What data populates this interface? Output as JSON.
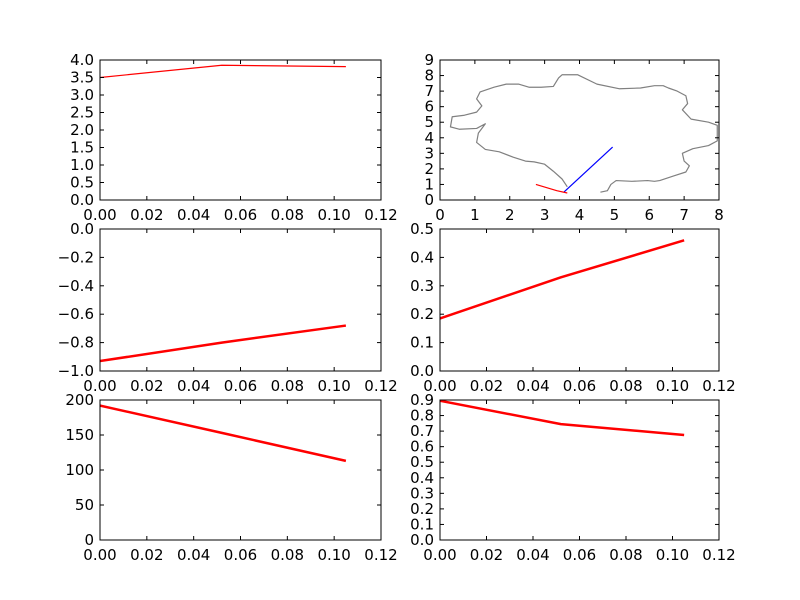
{
  "chart_data": [
    {
      "type": "line",
      "xlim": [
        0,
        0.12
      ],
      "ylim": [
        0,
        4
      ],
      "xticks": [
        0,
        0.02,
        0.04,
        0.06,
        0.08,
        0.1,
        0.12
      ],
      "xtick_labels": [
        "0.00",
        "0.02",
        "0.04",
        "0.06",
        "0.08",
        "0.10",
        "0.12"
      ],
      "yticks": [
        0,
        0.5,
        1,
        1.5,
        2,
        2.5,
        3,
        3.5,
        4
      ],
      "ytick_labels": [
        "0.0",
        "0.5",
        "1.0",
        "1.5",
        "2.0",
        "2.5",
        "3.0",
        "3.5",
        "4.0"
      ],
      "grid": false,
      "series": [
        {
          "color": "#ff0000",
          "x": [
            0,
            0.052,
            0.105
          ],
          "y": [
            3.5,
            3.85,
            3.81
          ]
        }
      ]
    },
    {
      "type": "line",
      "xlim": [
        0,
        8
      ],
      "ylim": [
        0,
        9
      ],
      "xticks": [
        0,
        1,
        2,
        3,
        4,
        5,
        6,
        7,
        8
      ],
      "xtick_labels": [
        "0",
        "1",
        "2",
        "3",
        "4",
        "5",
        "6",
        "7",
        "8"
      ],
      "yticks": [
        0,
        1,
        2,
        3,
        4,
        5,
        6,
        7,
        8,
        9
      ],
      "ytick_labels": [
        "0",
        "1",
        "2",
        "3",
        "4",
        "5",
        "6",
        "7",
        "8",
        "9"
      ],
      "grid": false,
      "series": [
        {
          "color": "#808080",
          "x": [
            4.6,
            4.8,
            4.9,
            5.05,
            5.5,
            5.95,
            6.15,
            6.3,
            6.7,
            7.05,
            7.15,
            7.0,
            6.95,
            7.25,
            7.7,
            7.95,
            7.95,
            7.7,
            7.2,
            6.95,
            7.1,
            7.05,
            6.8,
            6.55,
            6.4,
            6.15,
            5.75,
            5.15,
            4.5,
            3.95,
            3.5,
            3.4,
            3.25,
            2.9,
            2.55,
            2.25,
            1.9,
            1.55,
            1.15,
            1.05,
            1.2,
            1.05,
            0.7,
            0.35,
            0.3,
            0.55,
            1.05,
            1.3,
            1.1,
            1.05,
            1.3,
            1.7,
            2.1,
            2.45,
            2.7,
            3.0,
            3.25,
            3.5,
            3.65
          ],
          "y": [
            0.5,
            0.6,
            1.0,
            1.25,
            1.2,
            1.25,
            1.2,
            1.25,
            1.55,
            1.8,
            2.2,
            2.5,
            3.0,
            3.3,
            3.5,
            3.8,
            4.8,
            5.0,
            5.2,
            5.8,
            6.2,
            6.7,
            7.0,
            7.2,
            7.35,
            7.35,
            7.2,
            7.15,
            7.45,
            8.05,
            8.05,
            7.85,
            7.3,
            7.25,
            7.25,
            7.45,
            7.45,
            7.25,
            6.95,
            6.5,
            6.05,
            5.65,
            5.45,
            5.35,
            4.7,
            4.55,
            4.6,
            4.9,
            4.3,
            3.7,
            3.25,
            3.1,
            2.75,
            2.5,
            2.45,
            2.3,
            1.85,
            1.35,
            0.85
          ]
        },
        {
          "color": "#0000ff",
          "x": [
            3.55,
            4.95
          ],
          "y": [
            0.5,
            3.4
          ]
        },
        {
          "color": "#ff0000",
          "x": [
            2.75,
            3.05,
            3.35,
            3.65
          ],
          "y": [
            1.0,
            0.8,
            0.6,
            0.45
          ]
        }
      ]
    },
    {
      "type": "line",
      "xlim": [
        0,
        0.12
      ],
      "ylim": [
        -1,
        0
      ],
      "xticks": [
        0,
        0.02,
        0.04,
        0.06,
        0.08,
        0.1,
        0.12
      ],
      "xtick_labels": [
        "0.00",
        "0.02",
        "0.04",
        "0.06",
        "0.08",
        "0.10",
        "0.12"
      ],
      "yticks": [
        -1,
        -0.8,
        -0.6,
        -0.4,
        -0.2,
        0
      ],
      "ytick_labels": [
        "−1.0",
        "−0.8",
        "−0.6",
        "−0.4",
        "−0.2",
        "0.0"
      ],
      "grid": false,
      "series": [
        {
          "color": "#ff0000",
          "x": [
            0,
            0.052,
            0.105
          ],
          "y": [
            -0.93,
            -0.8,
            -0.68
          ]
        }
      ]
    },
    {
      "type": "line",
      "xlim": [
        0,
        0.12
      ],
      "ylim": [
        0,
        0.5
      ],
      "xticks": [
        0,
        0.02,
        0.04,
        0.06,
        0.08,
        0.1,
        0.12
      ],
      "xtick_labels": [
        "0.00",
        "0.02",
        "0.04",
        "0.06",
        "0.08",
        "0.10",
        "0.12"
      ],
      "yticks": [
        0,
        0.1,
        0.2,
        0.3,
        0.4,
        0.5
      ],
      "ytick_labels": [
        "0.0",
        "0.1",
        "0.2",
        "0.3",
        "0.4",
        "0.5"
      ],
      "grid": false,
      "series": [
        {
          "color": "#ff0000",
          "x": [
            0,
            0.052,
            0.105
          ],
          "y": [
            0.185,
            0.33,
            0.46
          ]
        }
      ]
    },
    {
      "type": "line",
      "xlim": [
        0,
        0.12
      ],
      "ylim": [
        0,
        200
      ],
      "xticks": [
        0,
        0.02,
        0.04,
        0.06,
        0.08,
        0.1,
        0.12
      ],
      "xtick_labels": [
        "0.00",
        "0.02",
        "0.04",
        "0.06",
        "0.08",
        "0.10",
        "0.12"
      ],
      "yticks": [
        0,
        50,
        100,
        150,
        200
      ],
      "ytick_labels": [
        "0",
        "50",
        "100",
        "150",
        "200"
      ],
      "grid": false,
      "series": [
        {
          "color": "#ff0000",
          "x": [
            0,
            0.052,
            0.105
          ],
          "y": [
            192,
            153,
            113
          ]
        }
      ]
    },
    {
      "type": "line",
      "xlim": [
        0,
        0.12
      ],
      "ylim": [
        0,
        0.9
      ],
      "xticks": [
        0,
        0.02,
        0.04,
        0.06,
        0.08,
        0.1,
        0.12
      ],
      "xtick_labels": [
        "0.00",
        "0.02",
        "0.04",
        "0.06",
        "0.08",
        "0.10",
        "0.12"
      ],
      "yticks": [
        0,
        0.1,
        0.2,
        0.3,
        0.4,
        0.5,
        0.6,
        0.7,
        0.8,
        0.9
      ],
      "ytick_labels": [
        "0.0",
        "0.1",
        "0.2",
        "0.3",
        "0.4",
        "0.5",
        "0.6",
        "0.7",
        "0.8",
        "0.9"
      ],
      "grid": false,
      "series": [
        {
          "color": "#ff0000",
          "x": [
            0,
            0.052,
            0.105
          ],
          "y": [
            0.895,
            0.745,
            0.675
          ]
        }
      ]
    }
  ]
}
